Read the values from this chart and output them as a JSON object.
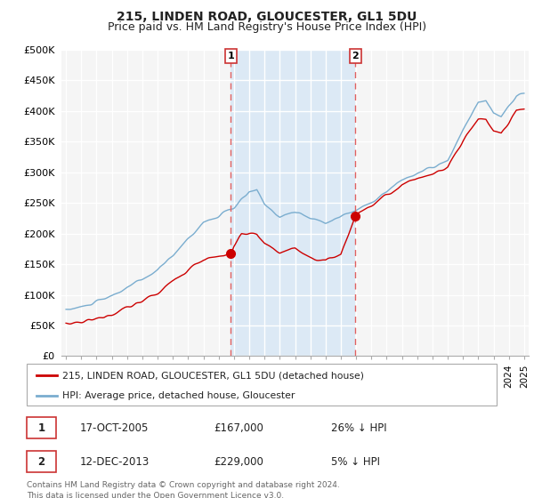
{
  "title": "215, LINDEN ROAD, GLOUCESTER, GL1 5DU",
  "subtitle": "Price paid vs. HM Land Registry's House Price Index (HPI)",
  "ylabel_values": [
    "£0",
    "£50K",
    "£100K",
    "£150K",
    "£200K",
    "£250K",
    "£300K",
    "£350K",
    "£400K",
    "£450K",
    "£500K"
  ],
  "ylim": [
    0,
    500000
  ],
  "xlim_start": 1994.7,
  "xlim_end": 2025.3,
  "marker1_x": 2005.8,
  "marker1_y": 167000,
  "marker1_label": "1",
  "marker2_x": 2013.95,
  "marker2_y": 229000,
  "marker2_label": "2",
  "legend_line1": "215, LINDEN ROAD, GLOUCESTER, GL1 5DU (detached house)",
  "legend_line2": "HPI: Average price, detached house, Gloucester",
  "table_row1": [
    "1",
    "17-OCT-2005",
    "£167,000",
    "26% ↓ HPI"
  ],
  "table_row2": [
    "2",
    "12-DEC-2013",
    "£229,000",
    "5% ↓ HPI"
  ],
  "footnote1": "Contains HM Land Registry data © Crown copyright and database right 2024.",
  "footnote2": "This data is licensed under the Open Government Licence v3.0.",
  "line_color_red": "#cc0000",
  "line_color_blue": "#7aadcf",
  "shade_color": "#dce9f5",
  "background_color": "#f5f5f5",
  "grid_color": "#ffffff",
  "dashed_line_color": "#e06060",
  "title_fontsize": 10,
  "subtitle_fontsize": 9
}
